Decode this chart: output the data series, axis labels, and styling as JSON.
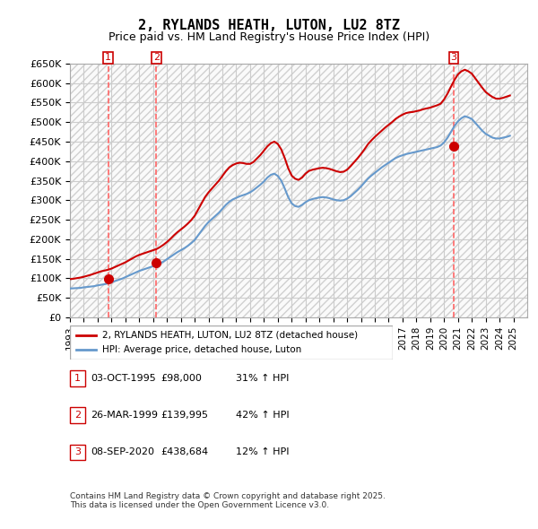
{
  "title": "2, RYLANDS HEATH, LUTON, LU2 8TZ",
  "subtitle": "Price paid vs. HM Land Registry's House Price Index (HPI)",
  "ylabel": "",
  "background_color": "#ffffff",
  "plot_bg_color": "#ffffff",
  "grid_color": "#cccccc",
  "hatch_color": "#e0e0e0",
  "line1_color": "#cc0000",
  "line2_color": "#6699cc",
  "vline_color": "#ff6666",
  "marker_color": "#cc0000",
  "ylim": [
    0,
    650000
  ],
  "yticks": [
    0,
    50000,
    100000,
    150000,
    200000,
    250000,
    300000,
    350000,
    400000,
    450000,
    500000,
    550000,
    600000,
    650000
  ],
  "ytick_labels": [
    "£0",
    "£50K",
    "£100K",
    "£150K",
    "£200K",
    "£250K",
    "£300K",
    "£350K",
    "£400K",
    "£450K",
    "£500K",
    "£550K",
    "£600K",
    "£650K"
  ],
  "xlim_start": 1993.0,
  "xlim_end": 2026.0,
  "xticks": [
    1993,
    1994,
    1995,
    1996,
    1997,
    1998,
    1999,
    2000,
    2001,
    2002,
    2003,
    2004,
    2005,
    2006,
    2007,
    2008,
    2009,
    2010,
    2011,
    2012,
    2013,
    2014,
    2015,
    2016,
    2017,
    2018,
    2019,
    2020,
    2021,
    2022,
    2023,
    2024,
    2025
  ],
  "sale_dates": [
    1995.75,
    1999.24,
    2020.69
  ],
  "sale_prices": [
    98000,
    139995,
    438684
  ],
  "sale_labels": [
    "1",
    "2",
    "3"
  ],
  "legend_label1": "2, RYLANDS HEATH, LUTON, LU2 8TZ (detached house)",
  "legend_label2": "HPI: Average price, detached house, Luton",
  "table_rows": [
    [
      "1",
      "03-OCT-1995",
      "£98,000",
      "31% ↑ HPI"
    ],
    [
      "2",
      "26-MAR-1999",
      "£139,995",
      "42% ↑ HPI"
    ],
    [
      "3",
      "08-SEP-2020",
      "£438,684",
      "12% ↑ HPI"
    ]
  ],
  "footer": "Contains HM Land Registry data © Crown copyright and database right 2025.\nThis data is licensed under the Open Government Licence v3.0.",
  "hpi_years": [
    1993.0,
    1993.25,
    1993.5,
    1993.75,
    1994.0,
    1994.25,
    1994.5,
    1994.75,
    1995.0,
    1995.25,
    1995.5,
    1995.75,
    1996.0,
    1996.25,
    1996.5,
    1996.75,
    1997.0,
    1997.25,
    1997.5,
    1997.75,
    1998.0,
    1998.25,
    1998.5,
    1998.75,
    1999.0,
    1999.25,
    1999.5,
    1999.75,
    2000.0,
    2000.25,
    2000.5,
    2000.75,
    2001.0,
    2001.25,
    2001.5,
    2001.75,
    2002.0,
    2002.25,
    2002.5,
    2002.75,
    2003.0,
    2003.25,
    2003.5,
    2003.75,
    2004.0,
    2004.25,
    2004.5,
    2004.75,
    2005.0,
    2005.25,
    2005.5,
    2005.75,
    2006.0,
    2006.25,
    2006.5,
    2006.75,
    2007.0,
    2007.25,
    2007.5,
    2007.75,
    2008.0,
    2008.25,
    2008.5,
    2008.75,
    2009.0,
    2009.25,
    2009.5,
    2009.75,
    2010.0,
    2010.25,
    2010.5,
    2010.75,
    2011.0,
    2011.25,
    2011.5,
    2011.75,
    2012.0,
    2012.25,
    2012.5,
    2012.75,
    2013.0,
    2013.25,
    2013.5,
    2013.75,
    2014.0,
    2014.25,
    2014.5,
    2014.75,
    2015.0,
    2015.25,
    2015.5,
    2015.75,
    2016.0,
    2016.25,
    2016.5,
    2016.75,
    2017.0,
    2017.25,
    2017.5,
    2017.75,
    2018.0,
    2018.25,
    2018.5,
    2018.75,
    2019.0,
    2019.25,
    2019.5,
    2019.75,
    2020.0,
    2020.25,
    2020.5,
    2020.75,
    2021.0,
    2021.25,
    2021.5,
    2021.75,
    2022.0,
    2022.25,
    2022.5,
    2022.75,
    2023.0,
    2023.25,
    2023.5,
    2023.75,
    2024.0,
    2024.25,
    2024.5,
    2024.75
  ],
  "hpi_values": [
    74000,
    74500,
    75000,
    75500,
    77000,
    78000,
    79000,
    80000,
    82000,
    83500,
    85000,
    87000,
    90000,
    93000,
    96000,
    99000,
    103000,
    107000,
    111000,
    115000,
    119000,
    122000,
    125000,
    128000,
    131000,
    134000,
    138000,
    143000,
    149000,
    155000,
    161000,
    167000,
    172000,
    177000,
    183000,
    190000,
    198000,
    210000,
    222000,
    234000,
    244000,
    252000,
    260000,
    268000,
    278000,
    288000,
    296000,
    302000,
    306000,
    310000,
    313000,
    316000,
    320000,
    326000,
    333000,
    340000,
    348000,
    358000,
    365000,
    368000,
    362000,
    350000,
    330000,
    308000,
    292000,
    285000,
    283000,
    288000,
    295000,
    300000,
    303000,
    305000,
    307000,
    308000,
    307000,
    305000,
    302000,
    300000,
    299000,
    300000,
    304000,
    310000,
    318000,
    326000,
    335000,
    345000,
    355000,
    363000,
    370000,
    377000,
    384000,
    390000,
    396000,
    402000,
    408000,
    412000,
    415000,
    418000,
    420000,
    422000,
    424000,
    426000,
    428000,
    430000,
    432000,
    434000,
    436000,
    440000,
    448000,
    460000,
    475000,
    490000,
    502000,
    510000,
    515000,
    512000,
    508000,
    498000,
    488000,
    478000,
    470000,
    465000,
    460000,
    458000,
    458000,
    460000,
    462000,
    465000
  ],
  "price_years": [
    1993.0,
    1993.25,
    1993.5,
    1993.75,
    1994.0,
    1994.25,
    1994.5,
    1994.75,
    1995.0,
    1995.25,
    1995.5,
    1995.75,
    1996.0,
    1996.25,
    1996.5,
    1996.75,
    1997.0,
    1997.25,
    1997.5,
    1997.75,
    1998.0,
    1998.25,
    1998.5,
    1998.75,
    1999.0,
    1999.25,
    1999.5,
    1999.75,
    2000.0,
    2000.25,
    2000.5,
    2000.75,
    2001.0,
    2001.25,
    2001.5,
    2001.75,
    2002.0,
    2002.25,
    2002.5,
    2002.75,
    2003.0,
    2003.25,
    2003.5,
    2003.75,
    2004.0,
    2004.25,
    2004.5,
    2004.75,
    2005.0,
    2005.25,
    2005.5,
    2005.75,
    2006.0,
    2006.25,
    2006.5,
    2006.75,
    2007.0,
    2007.25,
    2007.5,
    2007.75,
    2008.0,
    2008.25,
    2008.5,
    2008.75,
    2009.0,
    2009.25,
    2009.5,
    2009.75,
    2010.0,
    2010.25,
    2010.5,
    2010.75,
    2011.0,
    2011.25,
    2011.5,
    2011.75,
    2012.0,
    2012.25,
    2012.5,
    2012.75,
    2013.0,
    2013.25,
    2013.5,
    2013.75,
    2014.0,
    2014.25,
    2014.5,
    2014.75,
    2015.0,
    2015.25,
    2015.5,
    2015.75,
    2016.0,
    2016.25,
    2016.5,
    2016.75,
    2017.0,
    2017.25,
    2017.5,
    2017.75,
    2018.0,
    2018.25,
    2018.5,
    2018.75,
    2019.0,
    2019.25,
    2019.5,
    2019.75,
    2020.0,
    2020.25,
    2020.5,
    2020.75,
    2021.0,
    2021.25,
    2021.5,
    2021.75,
    2022.0,
    2022.25,
    2022.5,
    2022.75,
    2023.0,
    2023.25,
    2023.5,
    2023.75,
    2024.0,
    2024.25,
    2024.5,
    2024.75
  ],
  "price_values": [
    98000,
    99000,
    100500,
    102000,
    104000,
    106500,
    109000,
    112000,
    115000,
    118000,
    120000,
    122000,
    125000,
    129000,
    133000,
    137000,
    141000,
    146000,
    151000,
    156000,
    160000,
    163000,
    166000,
    169000,
    172000,
    175000,
    180000,
    186000,
    193000,
    201000,
    210000,
    218000,
    225000,
    232000,
    240000,
    249000,
    260000,
    276000,
    292000,
    308000,
    320000,
    330000,
    340000,
    350000,
    362000,
    374000,
    384000,
    390000,
    394000,
    396000,
    395000,
    393000,
    393000,
    398000,
    407000,
    416000,
    427000,
    438000,
    446000,
    450000,
    444000,
    430000,
    408000,
    382000,
    363000,
    355000,
    352000,
    358000,
    368000,
    375000,
    378000,
    380000,
    382000,
    383000,
    382000,
    380000,
    377000,
    374000,
    372000,
    373000,
    378000,
    387000,
    397000,
    407000,
    418000,
    430000,
    443000,
    453000,
    462000,
    470000,
    478000,
    486000,
    493000,
    500000,
    508000,
    514000,
    519000,
    523000,
    525000,
    526000,
    528000,
    530000,
    533000,
    535000,
    537000,
    540000,
    543000,
    547000,
    558000,
    573000,
    591000,
    608000,
    622000,
    630000,
    634000,
    630000,
    624000,
    612000,
    600000,
    588000,
    577000,
    570000,
    564000,
    560000,
    560000,
    562000,
    565000,
    568000
  ]
}
